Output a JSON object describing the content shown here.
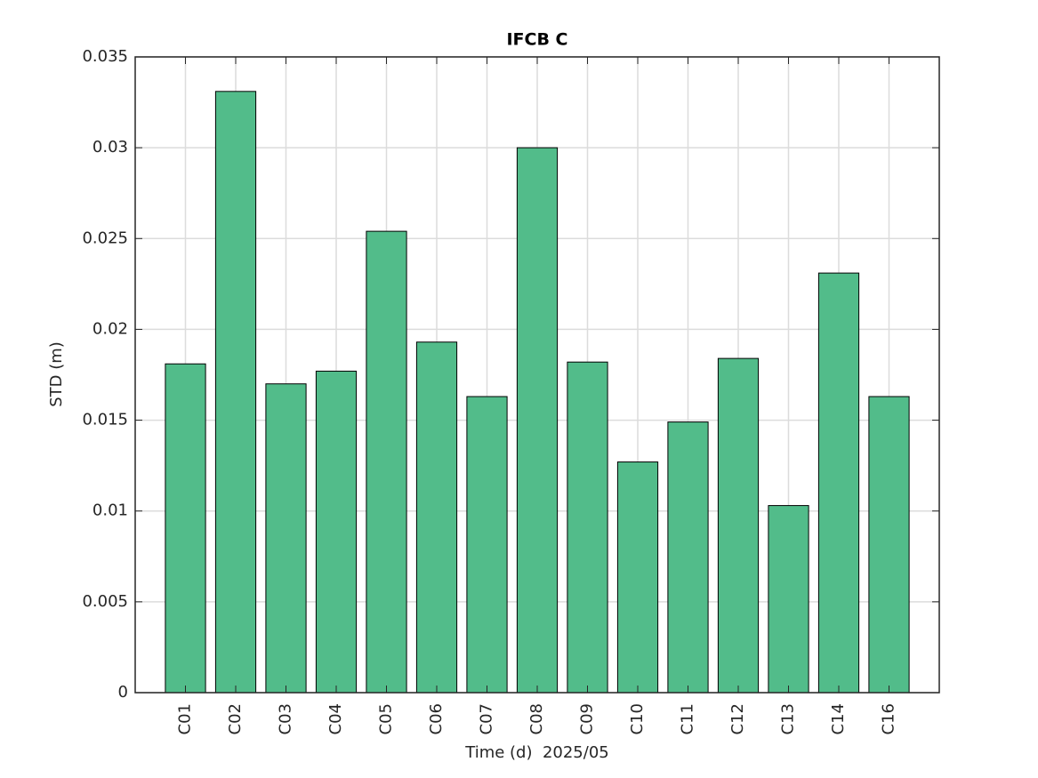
{
  "chart_data": {
    "type": "bar",
    "title": "IFCB C",
    "x_label": "Time (d)  2025/05",
    "y_label": "STD (m)",
    "categories": [
      "C01",
      "C02",
      "C03",
      "C04",
      "C05",
      "C06",
      "C07",
      "C08",
      "C09",
      "C10",
      "C11",
      "C12",
      "C13",
      "C14",
      "C16"
    ],
    "values": [
      0.0181,
      0.0331,
      0.017,
      0.0177,
      0.0254,
      0.0193,
      0.0163,
      0.03,
      0.0182,
      0.0127,
      0.0149,
      0.0184,
      0.0103,
      0.0231,
      0.0163
    ],
    "color": "#52bc8a",
    "ylim": [
      0,
      0.035
    ],
    "yticks": [
      0,
      0.005,
      0.01,
      0.015,
      0.02,
      0.025,
      0.03,
      0.035
    ],
    "grid": true
  }
}
